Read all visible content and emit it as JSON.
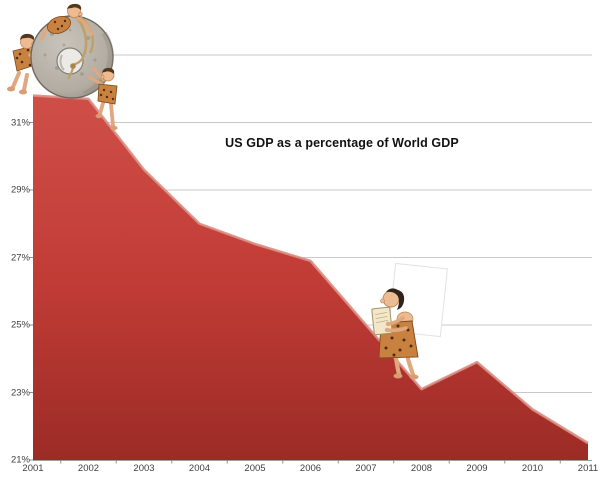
{
  "chart_data": {
    "type": "area",
    "title": "US GDP as a percentage of World GDP",
    "x": [
      2001,
      2002,
      2003,
      2004,
      2005,
      2006,
      2007,
      2008,
      2009,
      2010,
      2011
    ],
    "x_labels": [
      "2001",
      "2002",
      "2003",
      "2004",
      "2005",
      "2006",
      "2007",
      "2008",
      "2009",
      "2010",
      "2011"
    ],
    "series": [
      {
        "name": "US GDP as a percentage of World GDP",
        "values": [
          31.8,
          31.7,
          29.6,
          28.0,
          27.4,
          26.9,
          25.0,
          23.1,
          23.9,
          22.5,
          21.5
        ]
      }
    ],
    "unit": "%",
    "ylim": [
      21,
      33
    ],
    "y_tick_values": [
      21,
      23,
      25,
      27,
      29,
      31
    ],
    "y_tick_labels": [
      "21%",
      "23%",
      "25%",
      "27%",
      "29%",
      "31%"
    ],
    "y_gridline_values": [
      23,
      25,
      27,
      29,
      31,
      33
    ],
    "grid": "horizontal",
    "legend": false,
    "colors": {
      "area_fill_top": "#cf4f48",
      "area_fill_mid": "#c23c36",
      "area_fill_bottom": "#9c2b26",
      "area_top_highlight": "#db8e84",
      "gridline": "#c9c9c9",
      "axis_line": "#a0a0a0",
      "tick_label": "#3f3f3f",
      "title": "#111111"
    }
  },
  "illustrations": [
    {
      "id": "cavemen-stone-wheel",
      "description": "Three cavemen rolling a giant stone wheel at the 2001-2002 peak of the falling curve"
    },
    {
      "id": "caveman-stone-tablet",
      "description": "Caveman holding a stone tablet standing on the downslope near 2008"
    }
  ]
}
